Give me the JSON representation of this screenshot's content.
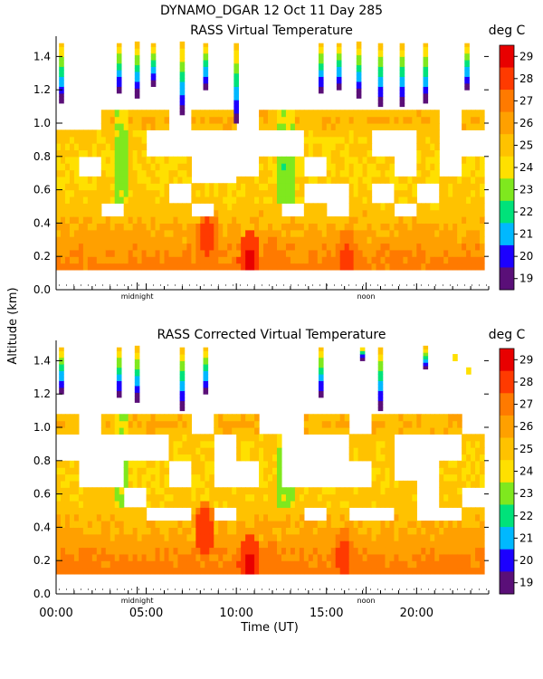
{
  "header": {
    "title": "DYNAMO_DGAR  12 Oct 11 Day 285"
  },
  "axes": {
    "ylabel": "Altitude (km)",
    "xlabel": "Time (UT)"
  },
  "palette": [
    "#000000",
    "#5a0f78",
    "#1c00ff",
    "#00b8ff",
    "#00e27a",
    "#7fe81e",
    "#ffe000",
    "#ffc200",
    "#ffa000",
    "#ff7a00",
    "#ff3a00",
    "#e80000"
  ],
  "chart_data": [
    {
      "type": "heatmap",
      "title": "RASS Virtual Temperature",
      "units": "deg C",
      "colorbar_ticks": [
        "29",
        "28",
        "27",
        "26",
        "25",
        "24",
        "23",
        "22",
        "21",
        "20",
        "19"
      ],
      "clim": [
        19,
        29
      ],
      "ylim": [
        0,
        1.5
      ],
      "xlim": [
        0,
        24
      ],
      "yticks": [
        "0.0",
        "0.2",
        "0.4",
        "0.6",
        "0.8",
        "1.0",
        "1.2",
        "1.4"
      ],
      "markers": [
        "midnight",
        "noon"
      ],
      "data_floor_km": 0.12,
      "base_profile": [
        [
          0.12,
          27.4
        ],
        [
          0.3,
          26.3
        ],
        [
          0.5,
          25.3
        ],
        [
          0.7,
          24.9
        ],
        [
          0.9,
          25.1
        ],
        [
          1.0,
          26.0
        ],
        [
          1.1,
          25.0
        ],
        [
          1.5,
          23.5
        ]
      ],
      "hot_spots": [
        [
          8.3,
          0.3,
          28.5
        ],
        [
          10.6,
          0.16,
          29.2
        ],
        [
          16,
          0.16,
          28.4
        ],
        [
          11.8,
          0.16,
          27.8
        ]
      ],
      "upper_columns": [
        [
          0.3,
          1.48,
          1.12
        ],
        [
          3.5,
          1.48,
          1.18
        ],
        [
          4.5,
          1.48,
          1.15
        ],
        [
          5.4,
          1.48,
          1.22
        ],
        [
          7,
          1.48,
          1.05
        ],
        [
          8.3,
          1.48,
          1.2
        ],
        [
          10,
          1.48,
          1.0
        ],
        [
          14.7,
          1.48,
          1.18
        ],
        [
          15.7,
          1.48,
          1.2
        ],
        [
          16.8,
          1.48,
          1.15
        ],
        [
          18,
          1.48,
          1.1
        ],
        [
          19.2,
          1.48,
          1.1
        ],
        [
          20.5,
          1.48,
          1.12
        ],
        [
          22.8,
          1.48,
          1.2
        ]
      ]
    },
    {
      "type": "heatmap",
      "title": "RASS Corrected Virtual Temperature",
      "units": "deg C",
      "colorbar_ticks": [
        "29",
        "28",
        "27",
        "26",
        "25",
        "24",
        "23",
        "22",
        "21",
        "20",
        "19"
      ],
      "clim": [
        19,
        29
      ],
      "ylim": [
        0,
        1.5
      ],
      "xlim": [
        0,
        24
      ],
      "yticks": [
        "0.0",
        "0.2",
        "0.4",
        "0.6",
        "0.8",
        "1.0",
        "1.2",
        "1.4"
      ],
      "xticks": [
        "00:00",
        "05:00",
        "10:00",
        "15:00",
        "20:00"
      ],
      "xtick_hours": [
        0,
        5,
        10,
        15,
        20
      ],
      "markers": [
        "midnight",
        "noon"
      ],
      "data_floor_km": 0.12,
      "base_profile": [
        [
          0.12,
          27.5
        ],
        [
          0.3,
          26.4
        ],
        [
          0.5,
          25.4
        ],
        [
          0.7,
          25.0
        ],
        [
          0.9,
          25.2
        ],
        [
          1.0,
          26.1
        ],
        [
          1.1,
          25.1
        ],
        [
          1.5,
          23.5
        ]
      ],
      "hot_spots": [
        [
          8.1,
          0.35,
          28.8
        ],
        [
          10.6,
          0.16,
          29.2
        ],
        [
          15.8,
          0.2,
          28.4
        ],
        [
          11.8,
          0.16,
          27.8
        ]
      ],
      "upper_columns": [
        [
          0.3,
          1.48,
          1.2
        ],
        [
          3.5,
          1.48,
          1.18
        ],
        [
          4.5,
          1.48,
          1.15
        ],
        [
          7,
          1.48,
          1.1
        ],
        [
          8.3,
          1.48,
          1.2
        ],
        [
          14.7,
          1.48,
          1.18
        ],
        [
          17.0,
          1.48,
          1.4
        ],
        [
          18,
          1.48,
          1.1
        ],
        [
          20.5,
          1.48,
          1.35
        ]
      ]
    }
  ]
}
